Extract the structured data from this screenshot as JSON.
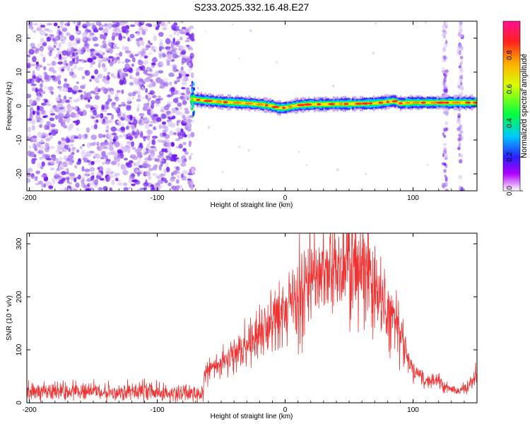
{
  "title": "S233.2025.332.16.48.E27",
  "chart_data": [
    {
      "type": "heatmap",
      "name": "spectrogram",
      "xlabel": "Height of straight line (km)",
      "ylabel": "Frequency (Hz)",
      "xlim": [
        -202,
        150
      ],
      "ylim": [
        -25,
        25
      ],
      "xticks": [
        -200,
        -100,
        0,
        100
      ],
      "yticks": [
        -20,
        -10,
        0,
        10,
        20
      ],
      "noise_region_km": [
        -202,
        -72
      ],
      "signal_trace": {
        "km": [
          -73,
          -60,
          -50,
          -40,
          -30,
          -20,
          -10,
          -5,
          0,
          10,
          20,
          30,
          40,
          50,
          60,
          70,
          80,
          85,
          90,
          100,
          110,
          120,
          130,
          140,
          150
        ],
        "freq_hz": [
          2,
          1.5,
          1.2,
          1.0,
          0.8,
          0.5,
          0.0,
          -0.6,
          -0.5,
          0.2,
          0.5,
          0.5,
          0.6,
          0.6,
          0.7,
          0.8,
          1.2,
          1.5,
          0.8,
          1.0,
          1.0,
          1.0,
          1.0,
          1.0,
          1.0
        ]
      },
      "colorbar": {
        "label": "Normalized spectral amplitude",
        "range": [
          0.0,
          1.0
        ],
        "ticks": [
          0.0,
          0.2,
          0.4,
          0.6,
          0.8
        ]
      }
    },
    {
      "type": "line",
      "name": "snr",
      "xlabel": "Height of straight line (km)",
      "ylabel": "SNR (10 * v/v)",
      "xlim": [
        -202,
        150
      ],
      "ylim": [
        0,
        320
      ],
      "xticks": [
        -200,
        -100,
        0,
        100
      ],
      "yticks": [
        0,
        100,
        200,
        300
      ],
      "color": "#ee3333",
      "envelope": {
        "km": [
          -202,
          -190,
          -170,
          -150,
          -130,
          -110,
          -90,
          -75,
          -64,
          -63,
          -55,
          -45,
          -35,
          -25,
          -15,
          -5,
          0,
          10,
          20,
          30,
          40,
          50,
          60,
          70,
          80,
          90,
          95,
          100,
          105,
          110,
          115,
          120,
          125,
          130,
          135,
          140,
          145,
          150
        ],
        "snr": [
          20,
          22,
          20,
          23,
          21,
          22,
          20,
          19,
          18,
          60,
          70,
          85,
          100,
          120,
          140,
          165,
          180,
          205,
          225,
          240,
          255,
          265,
          250,
          225,
          190,
          140,
          95,
          60,
          55,
          45,
          45,
          40,
          30,
          30,
          22,
          28,
          35,
          55
        ]
      }
    }
  ]
}
